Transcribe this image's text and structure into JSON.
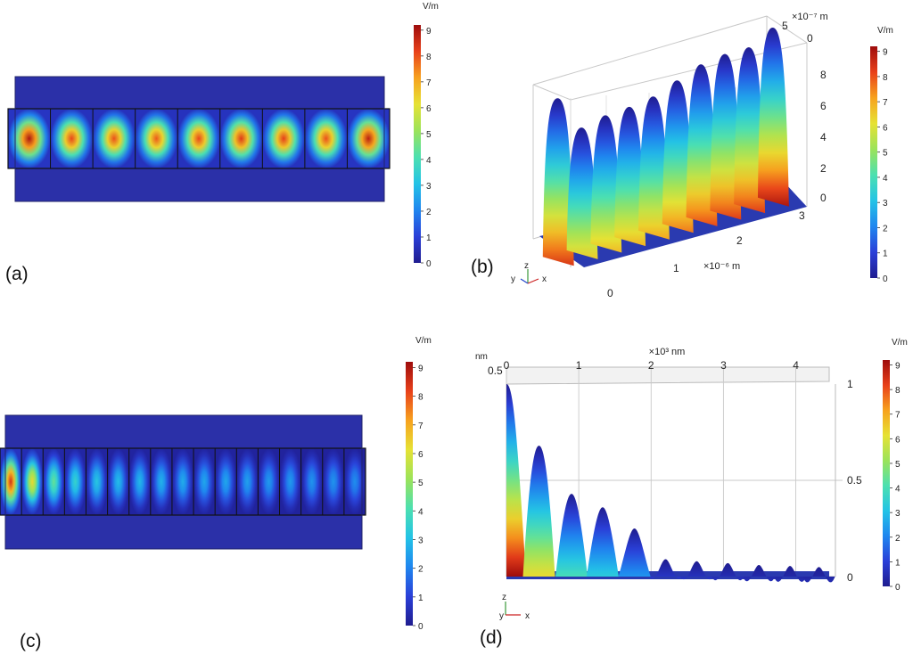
{
  "labels": {
    "a": "(a)",
    "b": "(b)",
    "c": "(c)",
    "d": "(d)"
  },
  "colorbar": {
    "unit": "V/m",
    "ticks": [
      "0",
      "1",
      "2",
      "3",
      "4",
      "5",
      "6",
      "7",
      "8",
      "9"
    ]
  },
  "colormap": [
    "#1f1c8f",
    "#2a3fd8",
    "#1f86ef",
    "#23c3e6",
    "#4ce0b0",
    "#9be35a",
    "#e6e234",
    "#f7a21e",
    "#e8401a",
    "#9e0c0c"
  ],
  "chart_data": [
    {
      "id": "a",
      "type": "heatmap",
      "title": "",
      "colorbar_label": "V/m",
      "colorbar_range": [
        0,
        9.2
      ],
      "cells": 9,
      "cell_peak_values": [
        9.0,
        8.1,
        8.0,
        7.9,
        8.1,
        8.3,
        8.2,
        8.0,
        8.8
      ]
    },
    {
      "id": "b",
      "type": "area",
      "title": "",
      "x_axis": {
        "ticks": [
          "0",
          "1",
          "2",
          "3"
        ],
        "label": "×10⁻⁶ m"
      },
      "depth_axis": {
        "ticks": [
          "5",
          "0"
        ],
        "label": "×10⁻⁷ m"
      },
      "z_axis": {
        "ticks": [
          "0",
          "2",
          "4",
          "6",
          "8"
        ]
      },
      "zlim": [
        0,
        9.2
      ],
      "series": [
        {
          "values": [
            8.4,
            6.5,
            6.8,
            6.9,
            7.1,
            7.6,
            8.1,
            8.3,
            8.3,
            9.0
          ]
        }
      ],
      "colorbar_label": "V/m",
      "colorbar_range": [
        0,
        9.2
      ],
      "triad": {
        "y": "y",
        "z": "z",
        "x": "x"
      }
    },
    {
      "id": "c",
      "type": "heatmap",
      "title": "",
      "colorbar_label": "V/m",
      "colorbar_range": [
        0,
        9.2
      ],
      "cells": 17,
      "cell_peak_values": [
        8.5,
        6.3,
        4.4,
        3.6,
        3.2,
        3.0,
        2.9,
        2.8,
        2.7,
        2.6,
        2.6,
        2.5,
        2.4,
        2.4,
        2.3,
        2.3,
        2.2
      ]
    },
    {
      "id": "d",
      "type": "area",
      "title": "",
      "x_axis": {
        "ticks": [
          "0",
          "1",
          "2",
          "3",
          "4"
        ],
        "label": "×10³ nm",
        "range": [
          0,
          4.4
        ]
      },
      "depth_axis": {
        "ticks": [
          "0.5"
        ],
        "label": "nm"
      },
      "z_axis": {
        "ticks": [
          "0",
          "0.5",
          "1"
        ]
      },
      "zlim": [
        0,
        1
      ],
      "series": [
        {
          "values": [
            1.0,
            0.68,
            0.43,
            0.36,
            0.25,
            0.09,
            0.08,
            0.07,
            0.06,
            0.055,
            0.05
          ]
        }
      ],
      "peak_positions": [
        0.0,
        0.45,
        0.9,
        1.33,
        1.77,
        2.2,
        2.63,
        3.06,
        3.49,
        3.92,
        4.32
      ],
      "colorbar_label": "V/m",
      "colorbar_range": [
        0,
        9.2
      ],
      "triad": {
        "y": "y",
        "z": "z",
        "x": "x"
      }
    }
  ]
}
